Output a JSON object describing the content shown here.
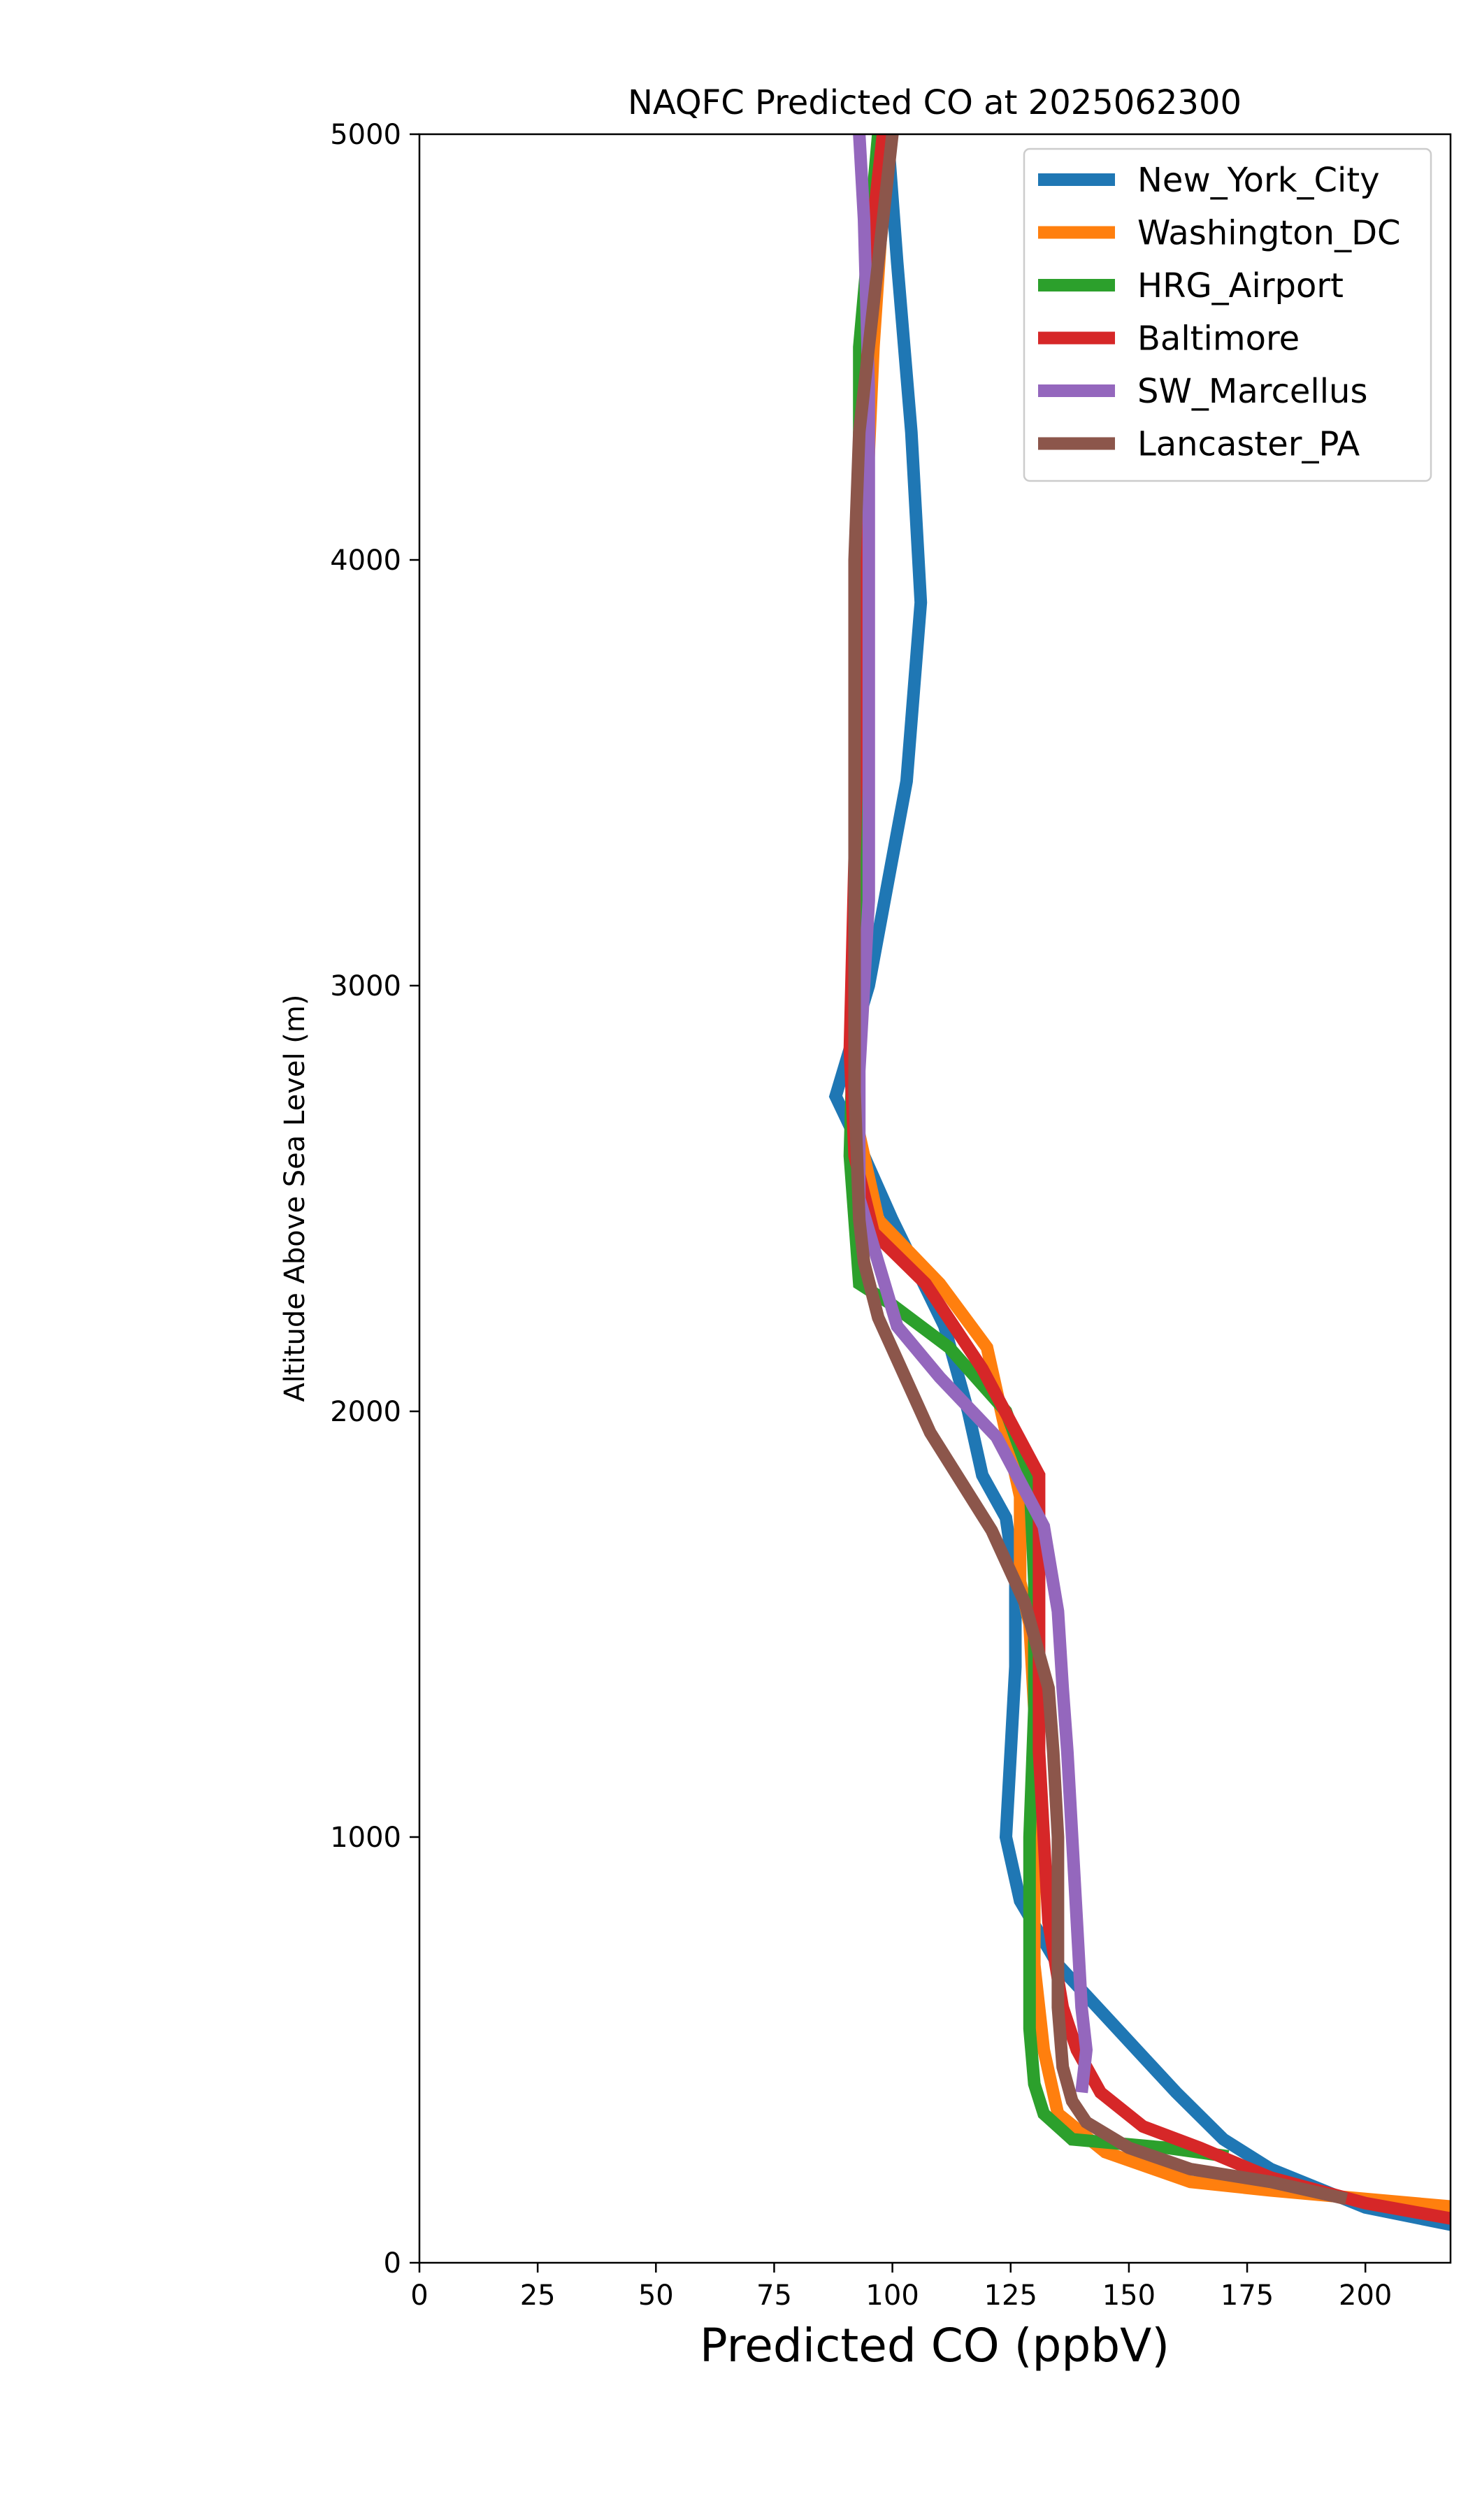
{
  "chart_data": {
    "type": "line",
    "title": "NAQFC Predicted CO at 2025062300",
    "xlabel": "Predicted CO (ppbV)",
    "ylabel": "Altitude Above Sea Level (m)",
    "xlim": [
      0,
      218
    ],
    "ylim": [
      0,
      5000
    ],
    "xticks": [
      "0",
      "25",
      "50",
      "75",
      "100",
      "125",
      "150",
      "175",
      "200"
    ],
    "yticks": [
      "0",
      "1000",
      "2000",
      "3000",
      "4000",
      "5000"
    ],
    "grid": false,
    "legend_position": "top-right",
    "series": [
      {
        "name": "New_York_City",
        "color": "#1f77b4",
        "points": [
          [
            220,
            85
          ],
          [
            200,
            130
          ],
          [
            180,
            220
          ],
          [
            170,
            290
          ],
          [
            160,
            400
          ],
          [
            145,
            580
          ],
          [
            135,
            700
          ],
          [
            127,
            850
          ],
          [
            124,
            1000
          ],
          [
            125,
            1200
          ],
          [
            126,
            1400
          ],
          [
            126,
            1600
          ],
          [
            124,
            1750
          ],
          [
            119,
            1850
          ],
          [
            116,
            2000
          ],
          [
            111,
            2200
          ],
          [
            100,
            2450
          ],
          [
            94,
            2600
          ],
          [
            88,
            2740
          ],
          [
            95,
            3000
          ],
          [
            103,
            3480
          ],
          [
            106,
            3900
          ],
          [
            104,
            4300
          ],
          [
            101,
            4700
          ],
          [
            99,
            5000
          ]
        ]
      },
      {
        "name": "Washington_DC",
        "color": "#ff7f0e",
        "points": [
          [
            220,
            130
          ],
          [
            200,
            150
          ],
          [
            180,
            170
          ],
          [
            163,
            190
          ],
          [
            145,
            260
          ],
          [
            135,
            350
          ],
          [
            132,
            500
          ],
          [
            130,
            700
          ],
          [
            130,
            900
          ],
          [
            130,
            1100
          ],
          [
            130,
            1300
          ],
          [
            129,
            1500
          ],
          [
            127,
            1600
          ],
          [
            127,
            1800
          ],
          [
            120,
            2150
          ],
          [
            110,
            2300
          ],
          [
            97,
            2450
          ],
          [
            92,
            2700
          ],
          [
            93,
            3000
          ],
          [
            93,
            3500
          ],
          [
            94,
            4000
          ],
          [
            96,
            4500
          ],
          [
            99,
            5000
          ]
        ]
      },
      {
        "name": "HRG_Airport",
        "color": "#2ca02c",
        "points": [
          [
            171,
            250
          ],
          [
            158,
            270
          ],
          [
            138,
            290
          ],
          [
            132,
            350
          ],
          [
            130,
            420
          ],
          [
            129,
            550
          ],
          [
            129,
            750
          ],
          [
            129,
            1000
          ],
          [
            130,
            1300
          ],
          [
            130,
            1600
          ],
          [
            129,
            1850
          ],
          [
            124,
            2000
          ],
          [
            112,
            2150
          ],
          [
            100,
            2250
          ],
          [
            93,
            2300
          ],
          [
            91,
            2600
          ],
          [
            92,
            3000
          ],
          [
            93,
            3500
          ],
          [
            93,
            4000
          ],
          [
            93,
            4500
          ],
          [
            97,
            5000
          ]
        ]
      },
      {
        "name": "Baltimore",
        "color": "#d62728",
        "points": [
          [
            220,
            100
          ],
          [
            200,
            140
          ],
          [
            180,
            200
          ],
          [
            165,
            270
          ],
          [
            153,
            320
          ],
          [
            144,
            400
          ],
          [
            139,
            500
          ],
          [
            136,
            600
          ],
          [
            133,
            800
          ],
          [
            131,
            1200
          ],
          [
            131,
            1600
          ],
          [
            131,
            1850
          ],
          [
            119,
            2100
          ],
          [
            107,
            2300
          ],
          [
            96,
            2420
          ],
          [
            92,
            2600
          ],
          [
            91,
            2850
          ],
          [
            92,
            3300
          ],
          [
            93,
            3800
          ],
          [
            94,
            4300
          ],
          [
            96,
            4800
          ],
          [
            98,
            5000
          ]
        ]
      },
      {
        "name": "SW_Marcellus",
        "color": "#9467bd",
        "points": [
          [
            140,
            400
          ],
          [
            141,
            500
          ],
          [
            140,
            600
          ],
          [
            139,
            800
          ],
          [
            138,
            1000
          ],
          [
            137,
            1200
          ],
          [
            136,
            1350
          ],
          [
            135,
            1530
          ],
          [
            132,
            1730
          ],
          [
            122,
            1940
          ],
          [
            110,
            2080
          ],
          [
            101,
            2200
          ],
          [
            97,
            2350
          ],
          [
            93,
            2500
          ],
          [
            93,
            2800
          ],
          [
            95,
            3200
          ],
          [
            95,
            3600
          ],
          [
            95,
            4000
          ],
          [
            95,
            4400
          ],
          [
            94,
            4800
          ],
          [
            93,
            5000
          ]
        ]
      },
      {
        "name": "Lancaster_PA",
        "color": "#8c564b",
        "points": [
          [
            196,
            150
          ],
          [
            180,
            190
          ],
          [
            163,
            220
          ],
          [
            150,
            270
          ],
          [
            141,
            330
          ],
          [
            138,
            380
          ],
          [
            136,
            460
          ],
          [
            135,
            600
          ],
          [
            135,
            800
          ],
          [
            135,
            1000
          ],
          [
            134,
            1200
          ],
          [
            133,
            1350
          ],
          [
            128,
            1550
          ],
          [
            121,
            1720
          ],
          [
            108,
            1950
          ],
          [
            97,
            2220
          ],
          [
            94,
            2350
          ],
          [
            93,
            2450
          ],
          [
            92,
            2750
          ],
          [
            92,
            3000
          ],
          [
            92,
            3600
          ],
          [
            92,
            4000
          ],
          [
            93,
            4300
          ],
          [
            98,
            4800
          ],
          [
            100,
            5000
          ]
        ]
      }
    ]
  }
}
